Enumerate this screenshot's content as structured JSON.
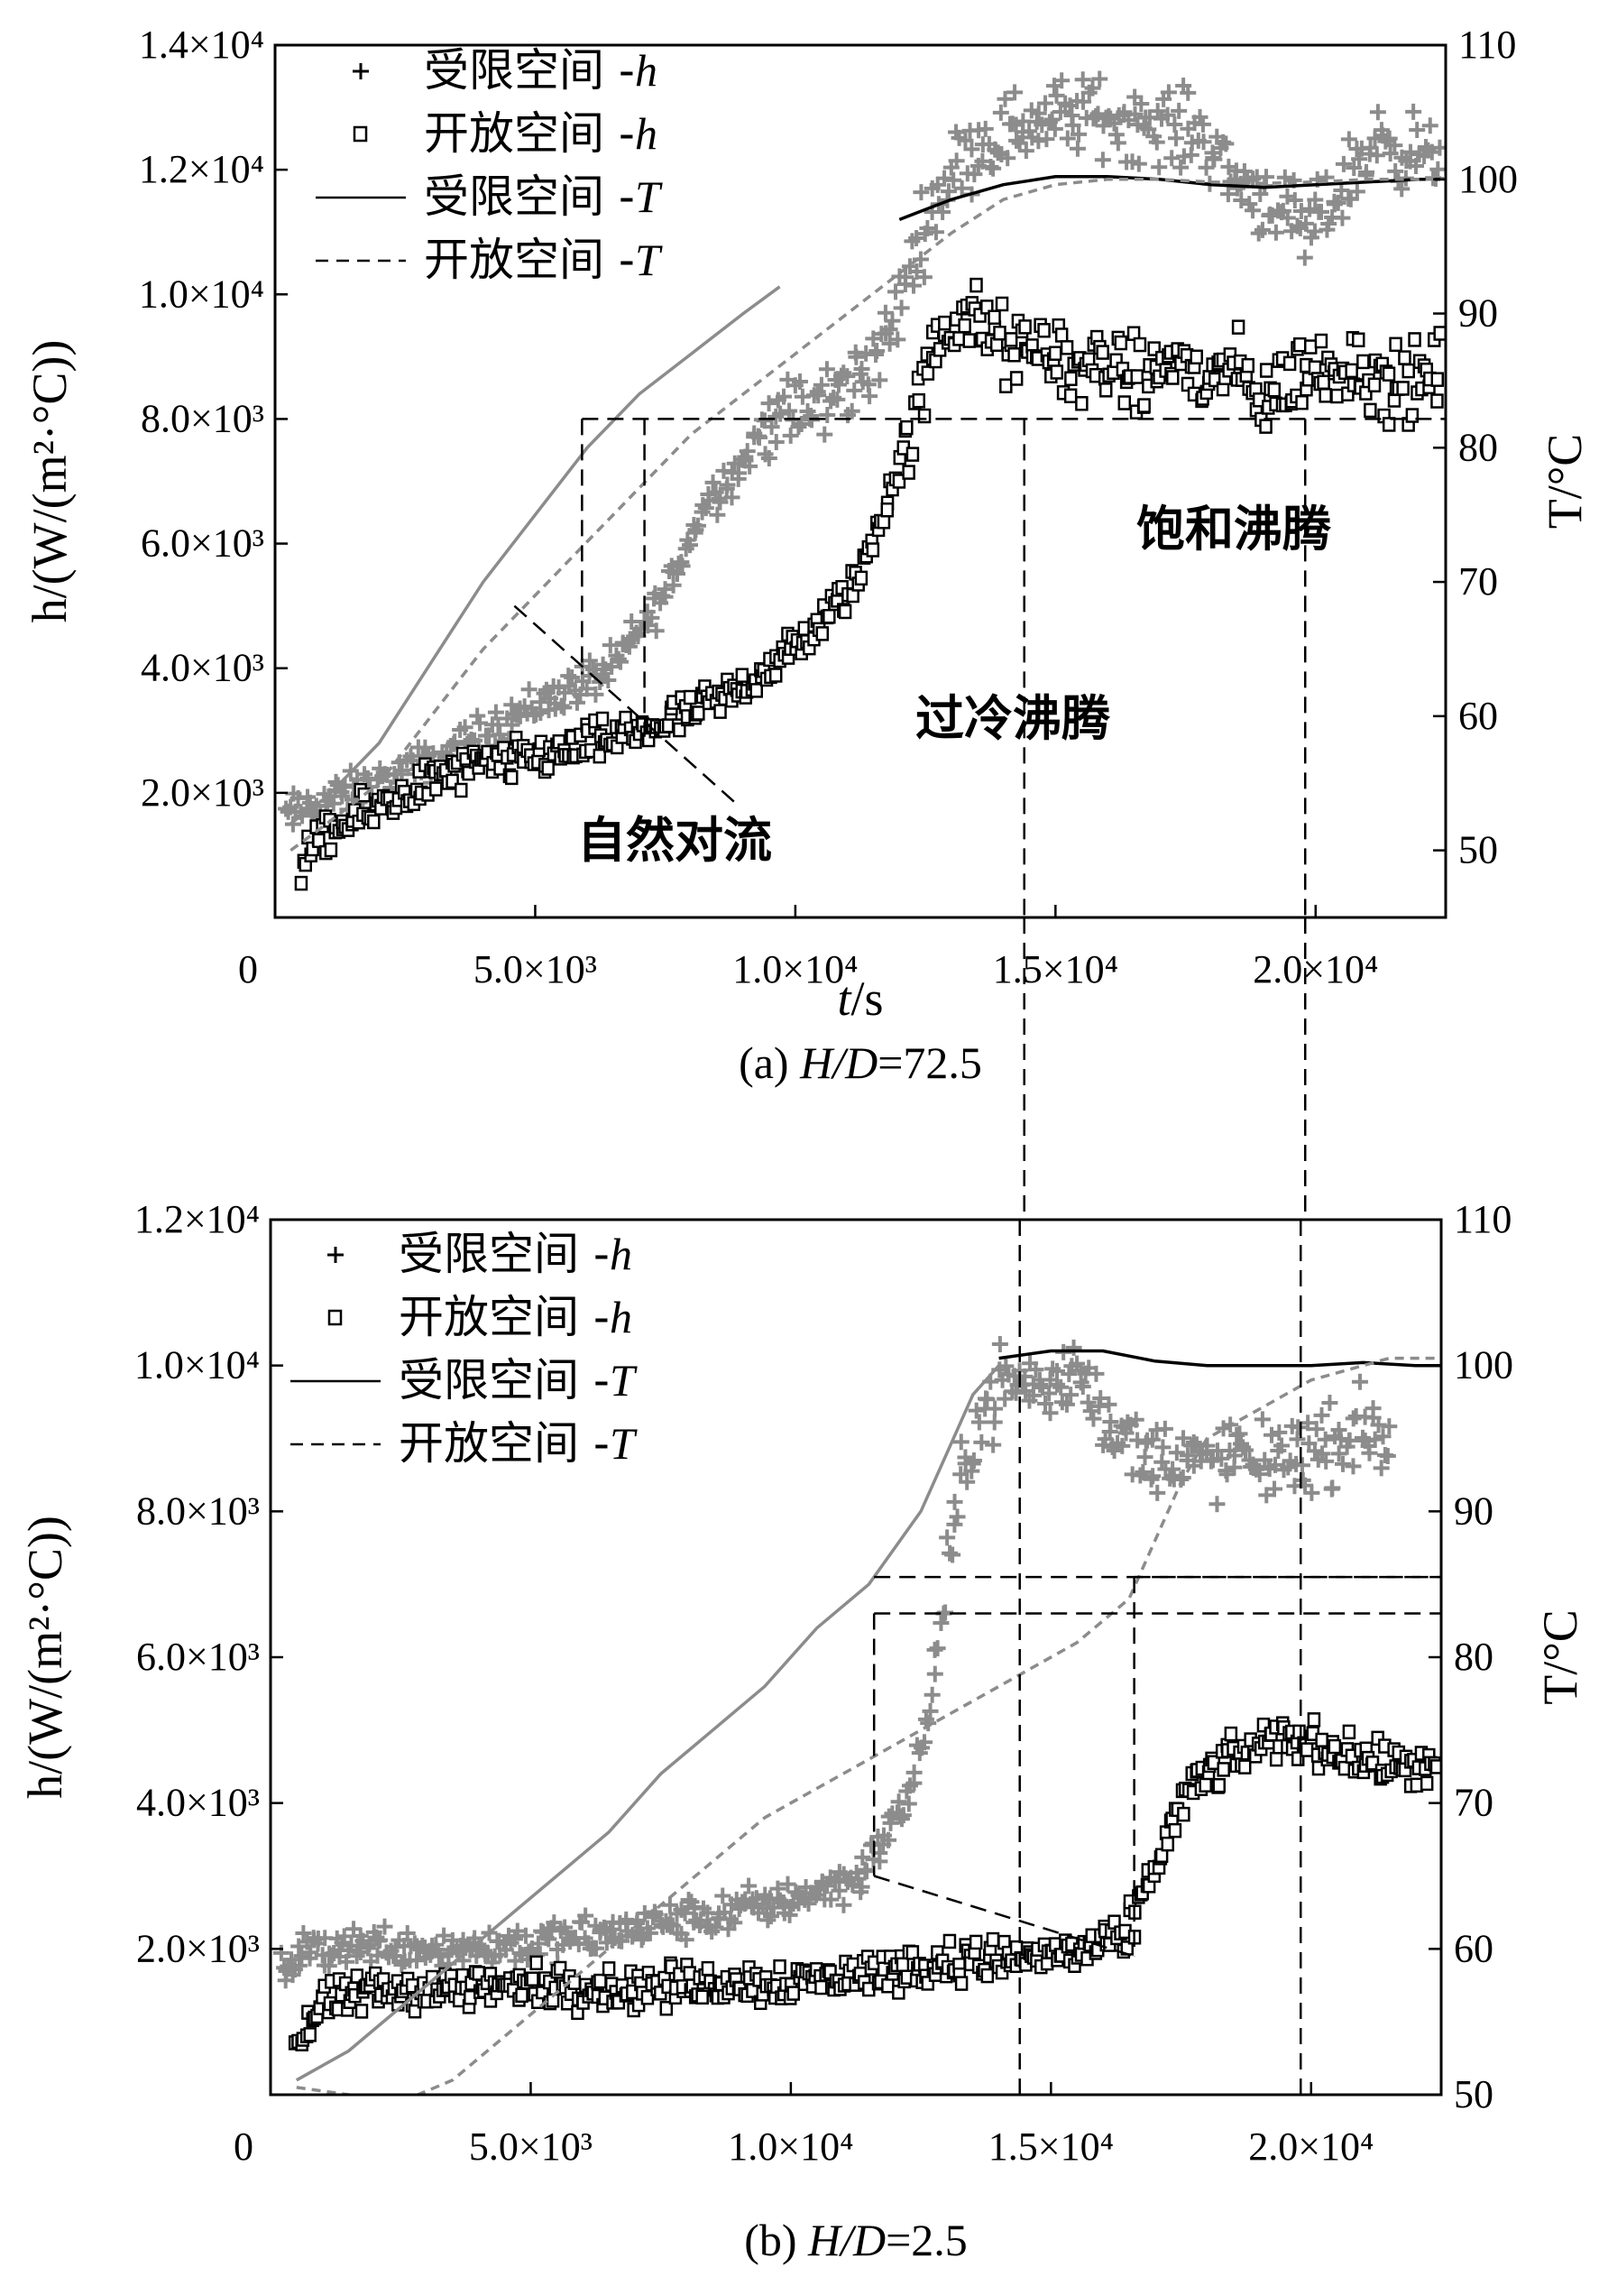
{
  "colors": {
    "gray": "#8c8c8c",
    "black": "#000000",
    "bg": "#ffffff"
  },
  "chart_data": [
    {
      "type": "scatter",
      "caption_prefix": "(a) ",
      "caption_italic": "H/D",
      "caption_suffix": "=72.5",
      "xlabel_italic": "t",
      "xlabel_rest": "/s",
      "ylabel_left": "h/(W/(m²·°C))",
      "ylabel_right": "T/°C",
      "xlim": [
        0,
        22500
      ],
      "ylim_left": [
        0,
        14000
      ],
      "ylim_right": [
        45,
        110
      ],
      "xticks": [
        {
          "v": 0,
          "label": "0"
        },
        {
          "v": 5000,
          "label": "5.0×10³"
        },
        {
          "v": 10000,
          "label": "1.0×10⁴"
        },
        {
          "v": 15000,
          "label": "1.5×10⁴"
        },
        {
          "v": 20000,
          "label": "2.0×10⁴"
        }
      ],
      "yticks_left": [
        {
          "v": 2000,
          "label": "2.0×10³"
        },
        {
          "v": 4000,
          "label": "4.0×10³"
        },
        {
          "v": 6000,
          "label": "6.0×10³"
        },
        {
          "v": 8000,
          "label": "8.0×10³"
        },
        {
          "v": 10000,
          "label": "1.0×10⁴"
        },
        {
          "v": 12000,
          "label": "1.2×10⁴"
        },
        {
          "v": 14000,
          "label": "1.4×10⁴"
        }
      ],
      "yticks_right": [
        {
          "v": 50,
          "label": "50"
        },
        {
          "v": 60,
          "label": "60"
        },
        {
          "v": 70,
          "label": "70"
        },
        {
          "v": 80,
          "label": "80"
        },
        {
          "v": 90,
          "label": "90"
        },
        {
          "v": 100,
          "label": "100"
        },
        {
          "v": 110,
          "label": "110"
        }
      ],
      "legend": [
        {
          "marker": "plus",
          "text": "受限空间 -",
          "sym": "h"
        },
        {
          "marker": "square",
          "text": "开放空间 -",
          "sym": "h"
        },
        {
          "marker": "solid",
          "text": "受限空间 -",
          "sym": "T"
        },
        {
          "marker": "dashed",
          "text": "开放空间 -",
          "sym": "T"
        }
      ],
      "annotations": [
        {
          "text": "饱和沸腾",
          "x": 16700,
          "y": 5900
        },
        {
          "text": "过冷沸腾",
          "x": 11900,
          "y": 2750
        },
        {
          "text": "自然对流",
          "x": 6000,
          "y": 700
        }
      ],
      "series": [
        {
          "name": "受限空间-h",
          "marker": "plus",
          "axis": "left",
          "color": "gray",
          "x": [
            200,
            700,
            1500,
            2500,
            3500,
            4500,
            5500,
            6500,
            7500,
            8300,
            9000,
            9500,
            10200,
            11000,
            11800,
            12300,
            12800,
            13300,
            14000,
            14700,
            15500,
            16300,
            17000,
            17800,
            18500,
            19200,
            19800,
            20500,
            21200,
            21800,
            22400
          ],
          "y": [
            1600,
            1800,
            2000,
            2300,
            2700,
            3200,
            3600,
            4000,
            5200,
            6700,
            7300,
            8000,
            8100,
            8500,
            9300,
            10700,
            11700,
            12300,
            12600,
            12800,
            12900,
            12800,
            12700,
            12600,
            11800,
            11500,
            10900,
            11700,
            12500,
            12300,
            12100
          ]
        },
        {
          "name": "开放空间-h",
          "marker": "square",
          "axis": "left",
          "color": "black",
          "x": [
            500,
            1000,
            1600,
            2300,
            3000,
            3800,
            4600,
            5400,
            6200,
            7000,
            7800,
            8600,
            9300,
            10000,
            10700,
            11300,
            11800,
            12300,
            12800,
            13300,
            13800,
            14300,
            14800,
            15400,
            16000,
            16600,
            17200,
            17800,
            18400,
            19000,
            19600,
            20200,
            20800,
            21400,
            22000,
            22400
          ],
          "y": [
            900,
            1300,
            1600,
            1900,
            2200,
            2400,
            2500,
            2650,
            2800,
            3000,
            3200,
            3500,
            3900,
            4300,
            4900,
            5600,
            6800,
            8000,
            9400,
            9700,
            9300,
            9000,
            9200,
            8700,
            9000,
            8500,
            9000,
            8600,
            8800,
            8300,
            8700,
            8800,
            8900,
            8500,
            8600,
            8800
          ]
        },
        {
          "name": "受限空间-T",
          "marker": "solid",
          "axis": "right",
          "color": "gray",
          "x": [
            300,
            1000,
            2000,
            3000,
            4000,
            5000,
            6000,
            7000,
            8000,
            9000,
            9700
          ],
          "y": [
            52,
            54,
            58,
            64,
            70,
            75,
            80,
            84,
            87,
            90,
            92
          ]
        },
        {
          "name": "受限空间-T",
          "marker": "solid",
          "axis": "right",
          "color": "black",
          "x": [
            12000,
            13000,
            14000,
            15000,
            16000,
            17000,
            18000,
            19000,
            20000,
            21000,
            22000,
            22400
          ],
          "y": [
            97,
            98.5,
            99.6,
            100.2,
            100.2,
            100,
            99.6,
            99.4,
            99.6,
            99.8,
            100,
            100
          ]
        },
        {
          "name": "开放空间-T",
          "marker": "dashed",
          "axis": "right",
          "color": "gray",
          "x": [
            300,
            1000,
            2000,
            3000,
            4000,
            5000,
            6000,
            7000,
            8000,
            9000,
            10000,
            11000,
            12000,
            13000,
            14000,
            15000,
            16000,
            17000,
            18000,
            19000,
            20000,
            21000,
            22000,
            22500
          ],
          "y": [
            50,
            52,
            55,
            60,
            65,
            69,
            73,
            77,
            81,
            84,
            87,
            90,
            93,
            96,
            98.5,
            99.6,
            100,
            100,
            99.8,
            99.7,
            99.8,
            100,
            100,
            100
          ]
        }
      ],
      "markers": {
        "horizontal_dashed_h": [
          8000
        ],
        "vertical_dashed_t": [
          14400,
          19800
        ],
        "transition_box_t": [
          5900,
          7100
        ]
      }
    },
    {
      "type": "scatter",
      "caption_prefix": "(b) ",
      "caption_italic": "H/D",
      "caption_suffix": "=2.5",
      "xlabel_italic": "",
      "xlabel_rest": "",
      "ylabel_left": "h/(W/(m²·°C))",
      "ylabel_right": "T/°C",
      "xlim": [
        0,
        22500
      ],
      "ylim_left": [
        0,
        12000
      ],
      "ylim_right": [
        50,
        110
      ],
      "xticks": [
        {
          "v": 0,
          "label": "0"
        },
        {
          "v": 5000,
          "label": "5.0×10³"
        },
        {
          "v": 10000,
          "label": "1.0×10⁴"
        },
        {
          "v": 15000,
          "label": "1.5×10⁴"
        },
        {
          "v": 20000,
          "label": "2.0×10⁴"
        }
      ],
      "yticks_left": [
        {
          "v": 2000,
          "label": "2.0×10³"
        },
        {
          "v": 4000,
          "label": "4.0×10³"
        },
        {
          "v": 6000,
          "label": "6.0×10³"
        },
        {
          "v": 8000,
          "label": "8.0×10³"
        },
        {
          "v": 10000,
          "label": "1.0×10⁴"
        },
        {
          "v": 12000,
          "label": "1.2×10⁴"
        }
      ],
      "yticks_right": [
        {
          "v": 50,
          "label": "50"
        },
        {
          "v": 60,
          "label": "60"
        },
        {
          "v": 70,
          "label": "70"
        },
        {
          "v": 80,
          "label": "80"
        },
        {
          "v": 90,
          "label": "90"
        },
        {
          "v": 100,
          "label": "100"
        },
        {
          "v": 110,
          "label": "110"
        }
      ],
      "legend": [
        {
          "marker": "plus",
          "text": "受限空间 -",
          "sym": "h"
        },
        {
          "marker": "square",
          "text": "开放空间 -",
          "sym": "h"
        },
        {
          "marker": "solid",
          "text": "受限空间 -",
          "sym": "T"
        },
        {
          "marker": "dashed",
          "text": "开放空间 -",
          "sym": "T"
        }
      ],
      "annotations": [],
      "series": [
        {
          "name": "受限空间-h",
          "marker": "plus",
          "axis": "left",
          "color": "gray",
          "x": [
            200,
            800,
            1500,
            2500,
            3500,
            4500,
            5500,
            6500,
            7500,
            8500,
            9500,
            10500,
            11300,
            11800,
            12200,
            12600,
            13000,
            13300,
            13600,
            14000,
            14500,
            15000,
            15500,
            16000,
            16500,
            17000,
            17500,
            18000,
            18500,
            19000,
            19500,
            20000,
            20500,
            21000,
            21500
          ],
          "y": [
            1700,
            2000,
            2050,
            2050,
            2000,
            2050,
            2100,
            2200,
            2350,
            2450,
            2600,
            2800,
            3000,
            3500,
            4000,
            5000,
            7000,
            8500,
            9300,
            9700,
            9800,
            9600,
            10000,
            9400,
            8900,
            8700,
            8800,
            8600,
            8800,
            8600,
            8800,
            8800,
            8900,
            9200,
            9000
          ]
        },
        {
          "name": "开放空间-h",
          "marker": "square",
          "axis": "left",
          "color": "black",
          "x": [
            500,
            1000,
            1800,
            2800,
            3800,
            4800,
            5800,
            6800,
            7800,
            8800,
            9800,
            10800,
            11800,
            12800,
            13800,
            14800,
            15800,
            16400,
            16800,
            17200,
            17600,
            18000,
            18500,
            19000,
            19500,
            20000,
            20500,
            21000,
            21500,
            22000,
            22400
          ],
          "y": [
            700,
            1200,
            1400,
            1450,
            1450,
            1500,
            1500,
            1450,
            1500,
            1550,
            1550,
            1600,
            1700,
            1800,
            1850,
            1900,
            2000,
            2100,
            2800,
            3500,
            4100,
            4400,
            4600,
            4800,
            4900,
            4850,
            4700,
            4600,
            4500,
            4500,
            4400
          ]
        },
        {
          "name": "受限空间-T",
          "marker": "solid",
          "axis": "right",
          "color": "gray",
          "x": [
            500,
            1500,
            2500,
            3500,
            4500,
            5500,
            6500,
            7500,
            8500,
            9500,
            10500,
            11500,
            12500,
            13000,
            13500,
            14000
          ],
          "y": [
            51,
            53,
            56,
            59,
            62,
            65,
            68,
            72,
            75,
            78,
            82,
            85,
            90,
            94,
            98,
            100
          ]
        },
        {
          "name": "受限空间-T",
          "marker": "solid",
          "axis": "right",
          "color": "black",
          "x": [
            14000,
            15000,
            16000,
            17000,
            18000,
            19000,
            20000,
            21000,
            22000,
            22500
          ],
          "y": [
            100.5,
            101,
            101,
            100.3,
            100,
            100,
            100,
            100.2,
            100,
            100
          ]
        },
        {
          "name": "开放空间-T",
          "marker": "dashed",
          "axis": "right",
          "color": "gray",
          "x": [
            500,
            1500,
            2500,
            3500,
            4500,
            5500,
            6500,
            7500,
            8500,
            9500,
            10500,
            11500,
            12500,
            13500,
            14500,
            15500,
            16500,
            17000,
            17500,
            18000,
            18500,
            19000,
            19500,
            20000,
            20500,
            21000,
            21500,
            22000,
            22500
          ],
          "y": [
            50.5,
            50,
            49.5,
            51,
            54,
            57,
            60,
            63,
            66,
            69,
            71,
            73,
            75,
            77,
            79,
            81,
            84,
            88,
            92,
            95,
            96,
            97,
            98,
            99,
            99.5,
            100,
            100.5,
            100.5,
            100.5
          ]
        }
      ],
      "markers": {
        "horizontal_dashed_h": [
          6600,
          7100
        ],
        "vertical_dashed_t": [
          14400,
          19800
        ],
        "transition_box_t": [
          11600,
          16600
        ]
      }
    }
  ]
}
